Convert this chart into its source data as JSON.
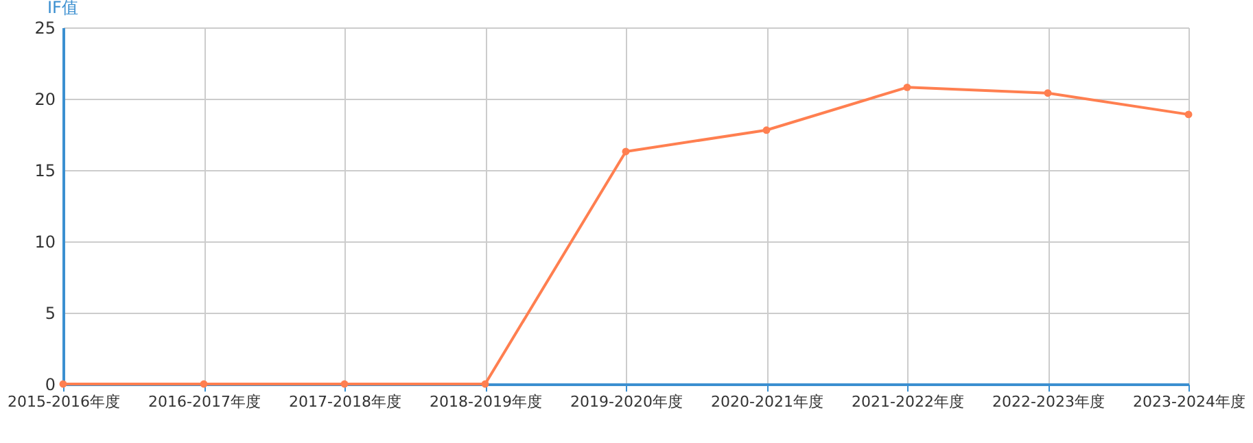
{
  "chart_data": {
    "type": "line",
    "ylabel": "IF值",
    "categories": [
      "2015-2016年度",
      "2016-2017年度",
      "2017-2018年度",
      "2018-2019年度",
      "2019-2020年度",
      "2020-2021年度",
      "2021-2022年度",
      "2022-2023年度",
      "2023-2024年度"
    ],
    "series": [
      {
        "color": "#ff7f50",
        "values": [
          0,
          0,
          0,
          0,
          16.3,
          17.8,
          20.8,
          20.4,
          18.9
        ]
      }
    ],
    "ylim": [
      0,
      25
    ],
    "yticks": [
      0,
      5,
      10,
      15,
      20,
      25
    ],
    "grid": true,
    "marker": "circle",
    "line_style": "solid"
  }
}
